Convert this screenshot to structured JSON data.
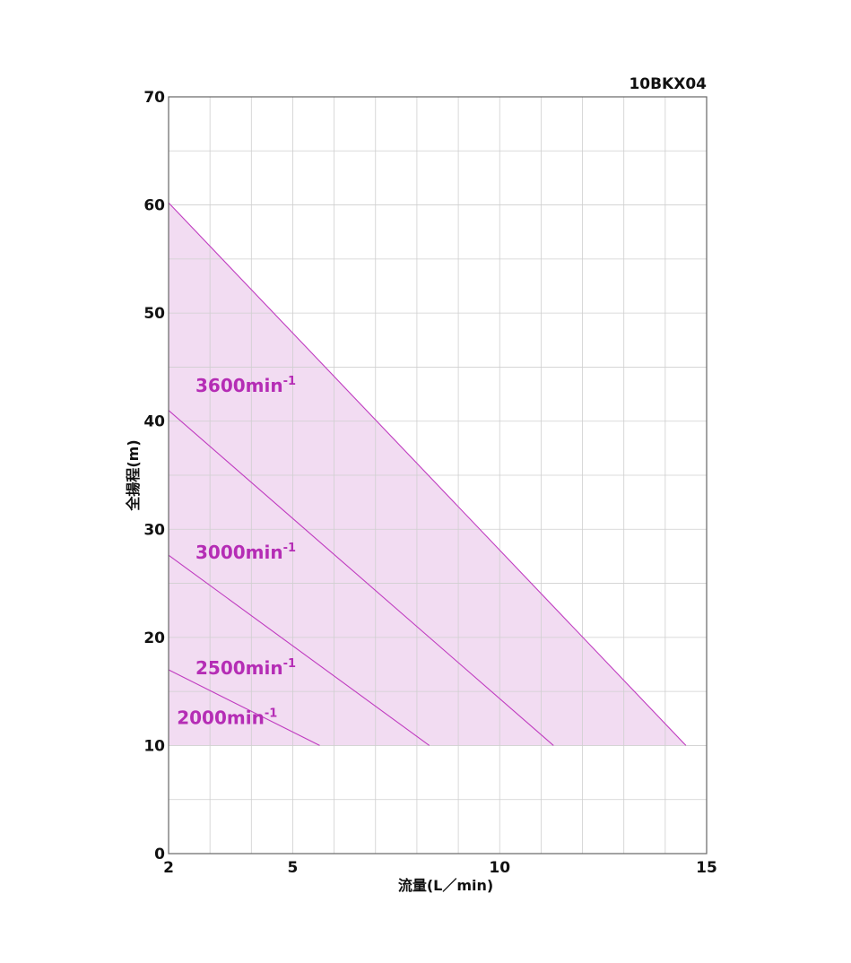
{
  "chart_data": {
    "type": "line",
    "model": "10BKX04",
    "xlabel": "流量(L／min)",
    "ylabel": "全揚程(m)",
    "xlim": [
      2,
      15
    ],
    "ylim": [
      0,
      70
    ],
    "x_ticks": [
      2,
      5,
      10,
      15
    ],
    "y_ticks": [
      0,
      10,
      20,
      30,
      40,
      50,
      60,
      70
    ],
    "x_minor_step": 1,
    "y_minor_step": 5,
    "grid": true,
    "line_color": "#c03cc0",
    "fill_color": "#f2dcf2",
    "label_color": "#b52db5",
    "series": [
      {
        "name": "3600min",
        "sup": "-1",
        "points": [
          [
            2,
            60.2
          ],
          [
            14.5,
            10
          ]
        ],
        "label_at": [
          2.65,
          42.7
        ]
      },
      {
        "name": "3000min",
        "sup": "-1",
        "points": [
          [
            2,
            41
          ],
          [
            11.3,
            10
          ]
        ],
        "label_at": [
          2.65,
          27.3
        ]
      },
      {
        "name": "2500min",
        "sup": "-1",
        "points": [
          [
            2,
            27.6
          ],
          [
            8.3,
            10
          ]
        ],
        "label_at": [
          2.65,
          16.6
        ]
      },
      {
        "name": "2000min",
        "sup": "-1",
        "points": [
          [
            2,
            17
          ],
          [
            5.65,
            10
          ]
        ],
        "label_at": [
          2.2,
          12.0
        ]
      }
    ]
  }
}
